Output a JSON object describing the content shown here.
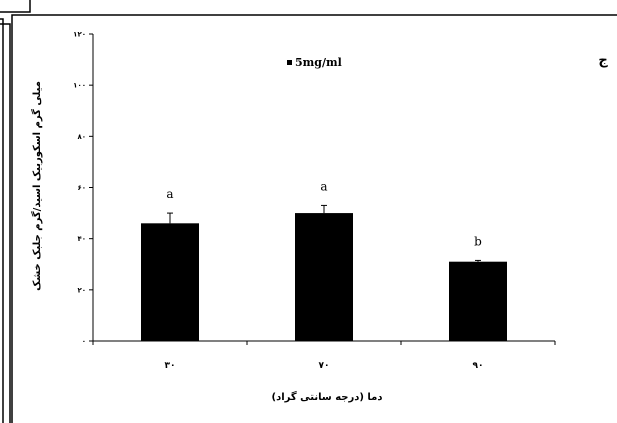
{
  "chart_data": {
    "type": "bar",
    "panel_label": "ج",
    "categories": [
      "۳۰",
      "۷۰",
      "۹۰"
    ],
    "series": [
      {
        "name": "5mg/ml",
        "values": [
          46,
          50,
          31
        ],
        "error": [
          4,
          3,
          0.5
        ],
        "significance": [
          "a",
          "a",
          "b"
        ]
      }
    ],
    "ylim": [
      0,
      120
    ],
    "yticks": [
      "۰",
      "۲۰",
      "۴۰",
      "۶۰",
      "۸۰",
      "۱۰۰",
      "۱۲۰"
    ],
    "xlabel": "دما (درجه سانتی گراد)",
    "ylabel": "میلی گرم اسکوربیک اسید/گرم جلبک خشک",
    "legend_position": "top-center",
    "bar_color": "#000000",
    "grid": false
  }
}
